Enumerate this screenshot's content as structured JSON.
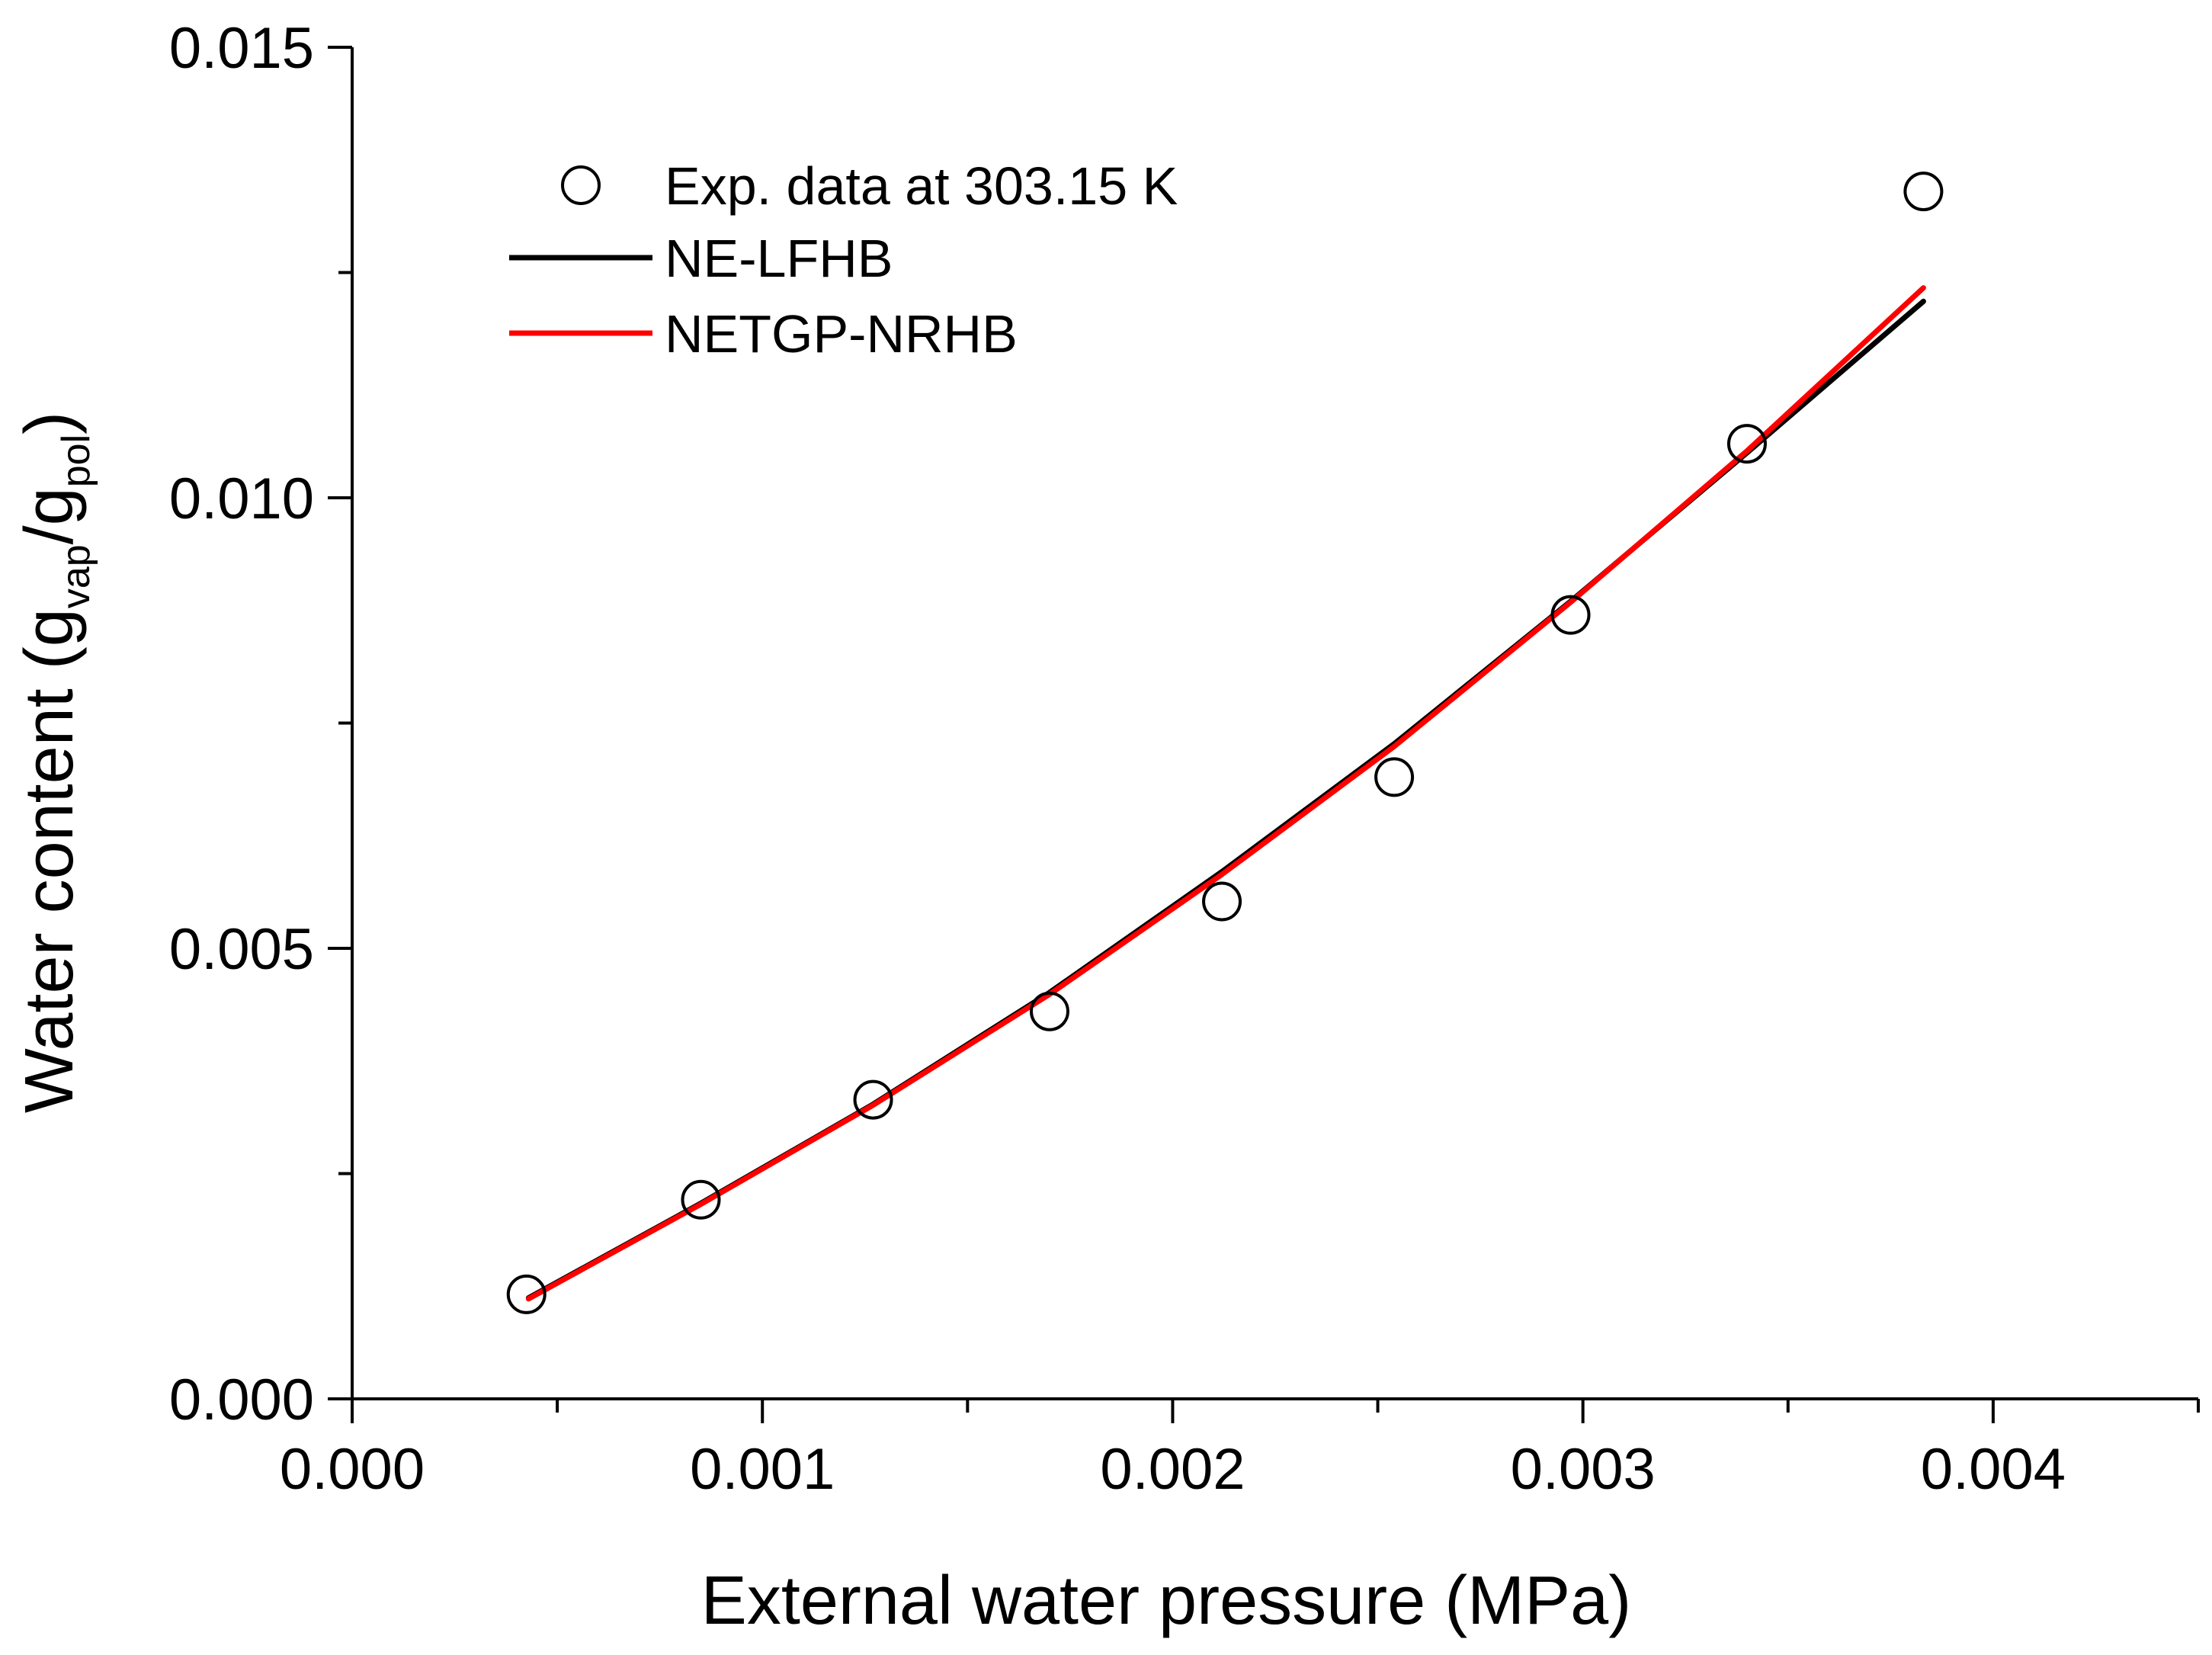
{
  "chart_data": {
    "type": "scatter",
    "title": "",
    "xlabel": "External water pressure (MPa)",
    "ylabel": {
      "prefix": "Water content (g",
      "sub1": "vap",
      "mid": "/g",
      "sub2": "pol",
      "suffix": ")"
    },
    "xlim": [
      0,
      0.0045
    ],
    "ylim": [
      0,
      0.015
    ],
    "x_ticks": [
      0,
      0.001,
      0.002,
      0.003,
      0.004
    ],
    "x_tick_labels": [
      "0.000",
      "0.001",
      "0.002",
      "0.003",
      "0.004"
    ],
    "x_minor_ticks": [
      0.0005,
      0.0015,
      0.0025,
      0.0035,
      0.0045
    ],
    "y_ticks": [
      0,
      0.005,
      0.01,
      0.015
    ],
    "y_tick_labels": [
      "0.000",
      "0.005",
      "0.010",
      "0.015"
    ],
    "y_minor_ticks": [
      0.0025,
      0.0075,
      0.0125
    ],
    "grid": false,
    "legend_position": "top-left",
    "series": [
      {
        "name": "Exp. data at 303.15 K",
        "kind": "markers",
        "color": "#000000",
        "x": [
          0.000425,
          0.00085,
          0.00127,
          0.0017,
          0.00212,
          0.00254,
          0.00297,
          0.0034,
          0.00383
        ],
        "y": [
          0.00116,
          0.00221,
          0.00332,
          0.0043,
          0.00552,
          0.0069,
          0.0087,
          0.0106,
          0.0134
        ]
      },
      {
        "name": "NE-LFHB",
        "kind": "line",
        "color": "#000000",
        "x": [
          0.00043,
          0.00085,
          0.00127,
          0.0017,
          0.00212,
          0.00254,
          0.00297,
          0.0034,
          0.00383
        ],
        "y": [
          0.00112,
          0.00217,
          0.00327,
          0.00451,
          0.00585,
          0.00727,
          0.00885,
          0.0105,
          0.01218
        ]
      },
      {
        "name": "NETGP-NRHB",
        "kind": "line",
        "color": "#ff0000",
        "x": [
          0.00043,
          0.00085,
          0.00127,
          0.0017,
          0.00212,
          0.00254,
          0.00297,
          0.0034,
          0.00383
        ],
        "y": [
          0.00111,
          0.00216,
          0.00326,
          0.00449,
          0.00582,
          0.00724,
          0.00884,
          0.01052,
          0.01233
        ]
      }
    ]
  }
}
